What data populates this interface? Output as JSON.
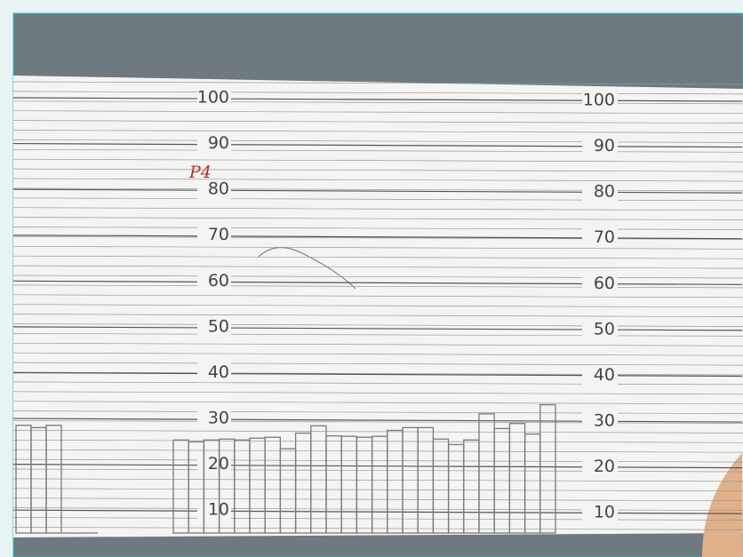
{
  "chart_data": {
    "type": "bar",
    "annotation": "P4",
    "categories": [
      null,
      null,
      null,
      null,
      null,
      null,
      null,
      null,
      null,
      null,
      null,
      null,
      null,
      null,
      null,
      null,
      null,
      null,
      null,
      null,
      null,
      null,
      null,
      null,
      null,
      null,
      null,
      null
    ],
    "values": [
      28.5,
      28,
      28.5,
      25.3,
      24.9,
      25.3,
      25.5,
      25.3,
      25.7,
      25.9,
      23.4,
      26.8,
      28.4,
      26.2,
      26.1,
      25.9,
      26.1,
      27.4,
      28,
      28,
      25.5,
      24.3,
      25.3,
      31,
      27.8,
      28.9,
      26.6,
      33
    ],
    "color": "#7a7a7a",
    "ylim": [
      5,
      100
    ],
    "yticks": [
      100,
      90,
      80,
      70,
      60,
      50,
      40,
      30,
      20,
      10
    ],
    "y2lim": [
      5,
      100
    ],
    "y2ticks": [
      100,
      90,
      80,
      70,
      60,
      50,
      40,
      30,
      20,
      10
    ],
    "grid": true
  }
}
